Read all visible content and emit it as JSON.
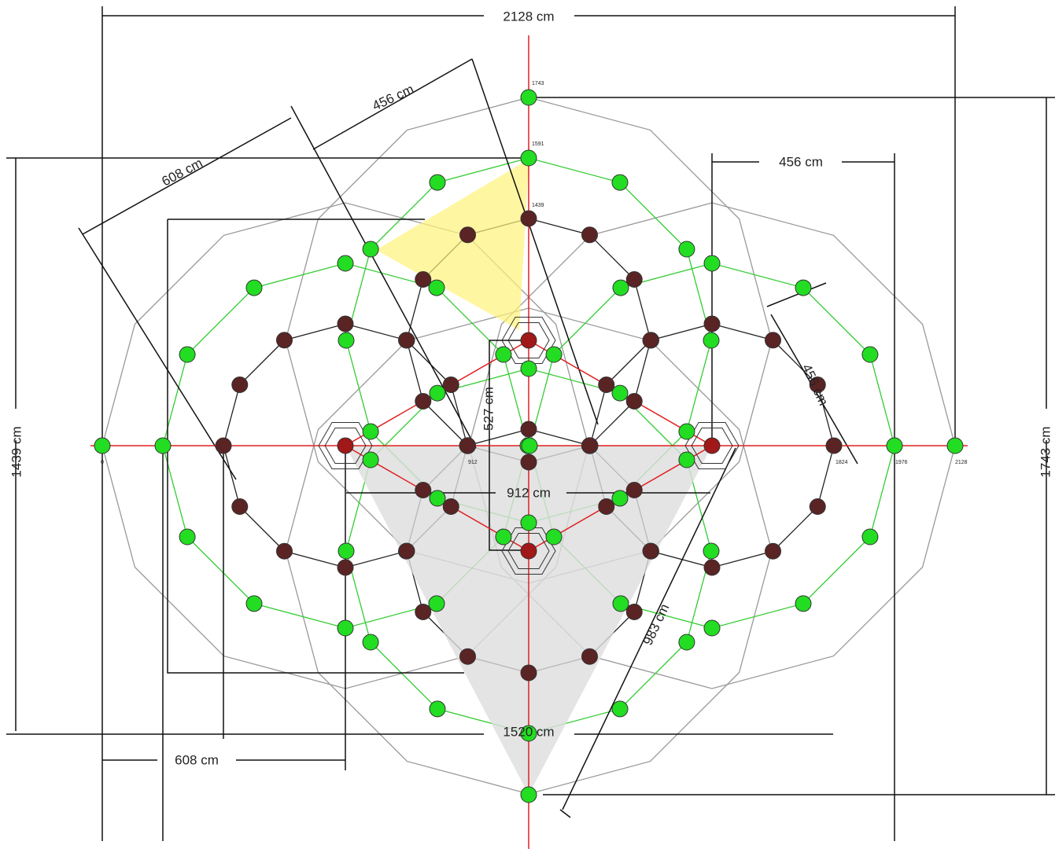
{
  "dimensions": [
    "2128 cm",
    "456 cm",
    "608 cm",
    "456 cm",
    "1439 cm",
    "1743 cm",
    "527 cm",
    "912 cm",
    "1520 cm",
    "608 cm",
    "983 cm",
    "456 cm"
  ],
  "node_labels": [
    "1743",
    "1591",
    "1439",
    "0",
    "2128",
    "1976",
    "1824",
    "912"
  ]
}
